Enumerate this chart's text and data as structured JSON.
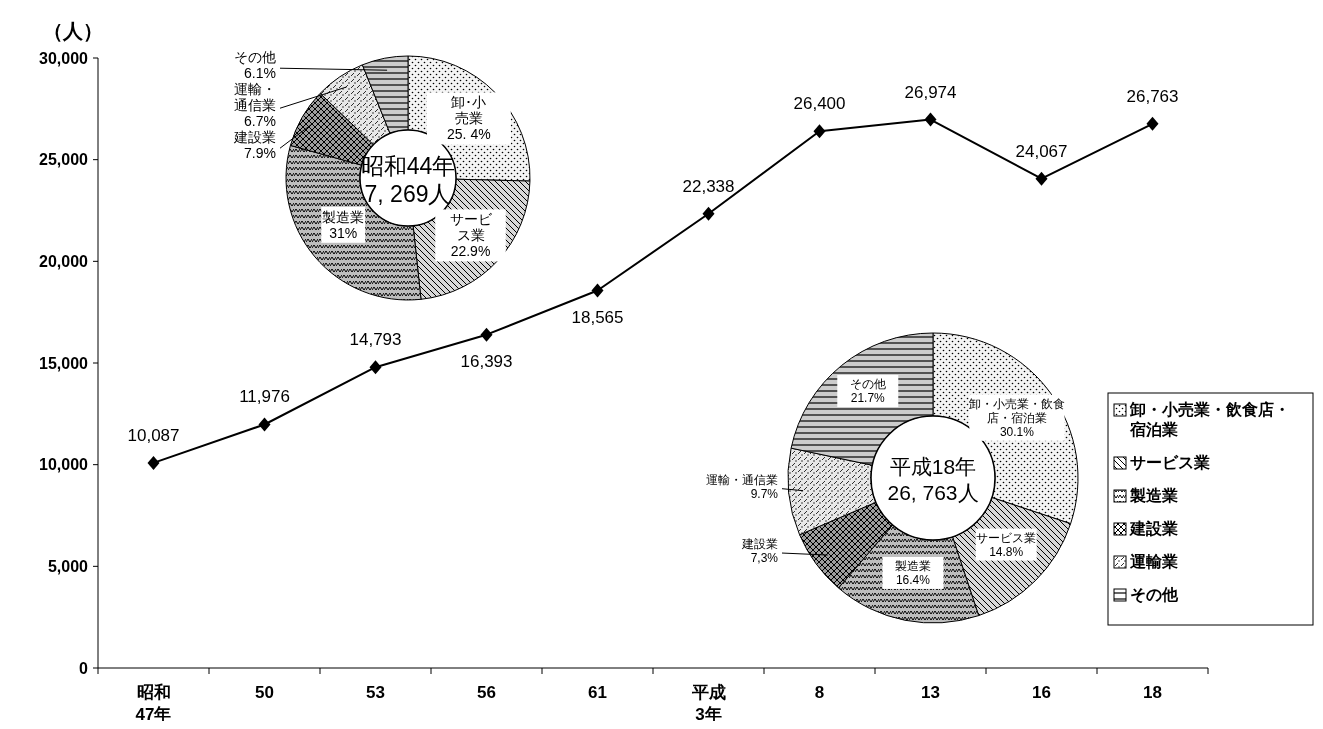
{
  "chart_data": [
    {
      "type": "line",
      "ylabel": "（人）",
      "categories": [
        "昭和\n47年",
        "50",
        "53",
        "56",
        "61",
        "平成\n3年",
        "8",
        "13",
        "16",
        "18"
      ],
      "series": [
        {
          "color": "#000000",
          "values": [
            10087,
            11976,
            14793,
            16393,
            18565,
            22338,
            26400,
            26974,
            24067,
            26763
          ],
          "value_labels": [
            "10,087",
            "11,976",
            "14,793",
            "16,393",
            "18,565",
            "22,338",
            "26,400",
            "26,974",
            "24,067",
            "26,763"
          ]
        }
      ],
      "ylim": [
        0,
        30000
      ],
      "yticks": [
        {
          "value": 0,
          "label": "0"
        },
        {
          "value": 5000,
          "label": "5,000"
        },
        {
          "value": 10000,
          "label": "10,000"
        },
        {
          "value": 15000,
          "label": "15,000"
        },
        {
          "value": 20000,
          "label": "20,000"
        },
        {
          "value": 25000,
          "label": "25,000"
        },
        {
          "value": 30000,
          "label": "30,000"
        }
      ],
      "marker": "diamond",
      "line_style": "solid",
      "grid": false
    },
    {
      "type": "donut",
      "title": "昭和44年\n7, 269人",
      "categories": [
        "卸･小売業",
        "サービス業",
        "製造業",
        "建設業",
        "運輸・通信業",
        "その他"
      ],
      "values": [
        25.4,
        22.9,
        31,
        7.9,
        6.7,
        6.1
      ],
      "value_labels": [
        "25. 4%",
        "22.9%",
        "31%",
        "7.9%",
        "6.7%",
        "6.1%"
      ],
      "colors": [
        "#f4f4f4",
        "#d8d8d8",
        "#bdbdbd",
        "#9e9e9e",
        "#e8e8e8",
        "#cccccc"
      ]
    },
    {
      "type": "donut",
      "title": "平成18年\n26, 763人",
      "categories": [
        "卸・小売業・飲食店・宿泊業",
        "サービス業",
        "製造業",
        "建設業",
        "運輸・通信業",
        "その他"
      ],
      "values": [
        30.1,
        14.8,
        16.4,
        7.3,
        9.7,
        21.7
      ],
      "value_labels": [
        "30.1%",
        "14.8%",
        "16.4%",
        "7,3%",
        "9.7%",
        "21.7%"
      ],
      "colors": [
        "#f4f4f4",
        "#d8d8d8",
        "#bdbdbd",
        "#9e9e9e",
        "#e8e8e8",
        "#cccccc"
      ]
    },
    {
      "type": "other",
      "annotations": [
        "卸・小売業・飲食店・宿泊業",
        "サービス業",
        "製造業",
        "建設業",
        "運輸業",
        "その他"
      ]
    }
  ]
}
